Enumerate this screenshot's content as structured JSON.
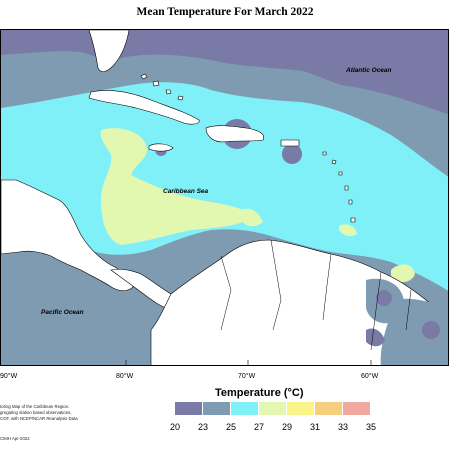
{
  "title": "Mean Temperature For March 2022",
  "map": {
    "ocean_labels": {
      "atlantic": "Atlantic Ocean",
      "caribbean": "Caribbean Sea",
      "pacific": "Pacific Ocean"
    },
    "longitude_labels": [
      "90°W",
      "80°W",
      "70°W",
      "60°W"
    ]
  },
  "legend": {
    "title": "Temperature (°C)",
    "ticks": [
      "20",
      "23",
      "25",
      "27",
      "29",
      "31",
      "33",
      "35"
    ],
    "bins": [
      {
        "from": "20",
        "to": "23",
        "color": "#7a7aa6"
      },
      {
        "from": "23",
        "to": "25",
        "color": "#7f9bb2"
      },
      {
        "from": "25",
        "to": "27",
        "color": "#7ff0f8"
      },
      {
        "from": "27",
        "to": "29",
        "color": "#e2f8b0"
      },
      {
        "from": "29",
        "to": "31",
        "color": "#fbf48a"
      },
      {
        "from": "31",
        "to": "33",
        "color": "#f5cf7e"
      },
      {
        "from": "33",
        "to": "35",
        "color": "#f0a8a0"
      }
    ]
  },
  "colors": {
    "land": "#ffffff",
    "coast": "#000000",
    "t20_23": "#7a7aa6",
    "t23_25": "#7f9bb2",
    "t25_27": "#7ff0f8",
    "t27_29": "#e2f8b0",
    "t29_31": "#fbf48a"
  },
  "footnote": {
    "lines": [
      "toring Map of the Caribbean Region.",
      "gregating station based observations,",
      "COF, with NCEP/NCAR Reanalysis Data"
    ],
    "credit": "CIMH Apr-2022"
  }
}
